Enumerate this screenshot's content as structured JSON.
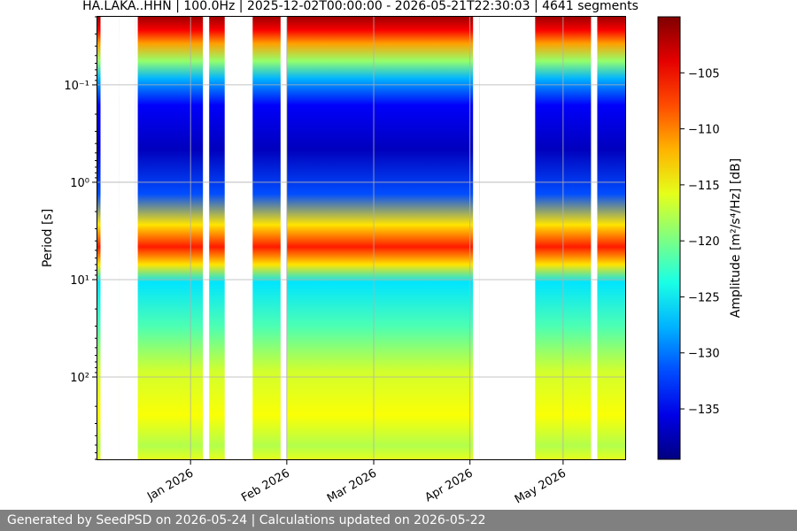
{
  "chart_data": {
    "type": "heatmap",
    "title": "HA.LAKA..HHN | 100.0Hz | 2025-12-02T00:00:00 - 2026-05-21T22:30:03 | 4641 segments",
    "ylabel": "Period [s]",
    "xlabel": "",
    "y_scale": "log",
    "y_inverted": true,
    "y_range": [
      0.02,
      700
    ],
    "y_ticks": [
      {
        "value": 0.1,
        "label": "10⁻¹"
      },
      {
        "value": 1,
        "label": "10⁰"
      },
      {
        "value": 10,
        "label": "10¹"
      },
      {
        "value": 100,
        "label": "10²"
      }
    ],
    "x_range": [
      "2025-12-02",
      "2026-05-21"
    ],
    "x_ticks": [
      {
        "value": "2026-01-01",
        "label": "Jan 2026"
      },
      {
        "value": "2026-02-01",
        "label": "Feb 2026"
      },
      {
        "value": "2026-03-01",
        "label": "Mar 2026"
      },
      {
        "value": "2026-04-01",
        "label": "Apr 2026"
      },
      {
        "value": "2026-05-01",
        "label": "May 2026"
      }
    ],
    "grid": true,
    "colormap": "jet",
    "colorbar": {
      "label": "Amplitude [m²/s⁴/Hz] [dB]",
      "range": [
        -139.5,
        -100
      ],
      "ticks": [
        -105,
        -110,
        -115,
        -120,
        -125,
        -130,
        -135
      ]
    },
    "data_gaps": [
      [
        "2025-12-03",
        "2025-12-08"
      ],
      [
        "2025-12-09",
        "2025-12-13"
      ],
      [
        "2025-12-14",
        "2025-12-14"
      ],
      [
        "2026-01-05",
        "2026-01-06"
      ],
      [
        "2026-01-12",
        "2026-01-20"
      ],
      [
        "2026-01-30",
        "2026-01-31"
      ],
      [
        "2026-04-02",
        "2026-04-03"
      ],
      [
        "2026-04-04",
        "2026-04-21"
      ],
      [
        "2026-05-10",
        "2026-05-11"
      ]
    ]
  },
  "footer": {
    "text": "Generated by SeedPSD on 2026-05-24 | Calculations updated on 2026-05-22"
  }
}
